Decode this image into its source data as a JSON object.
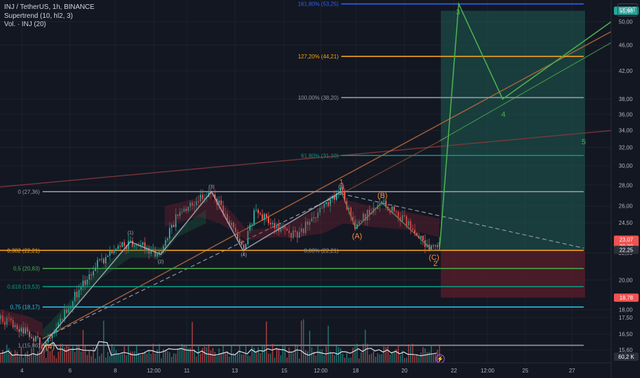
{
  "header": {
    "symbol_line": "INJ / TetherUS, 1h, BINANCE",
    "indicator_1": "Supertrend (10, hl2, 3)",
    "indicator_2": "Vol. · INJ (20)",
    "currency_button": "USDT"
  },
  "colors": {
    "background": "#131722",
    "grid": "#1e222d",
    "axis_text": "#b2b5be",
    "fib_0": "#9598a1",
    "fib_382": "#f7a21b",
    "fib_05": "#4caf50",
    "fib_618": "#089981",
    "fib_075": "#2ec4e6",
    "fib_1": "#9598a1",
    "ext_618": "#089981",
    "ext_100": "#9598a1",
    "ext_127": "#f7a21b",
    "ext_161": "#2962ff",
    "up_candle": "#26a69a",
    "down_candle": "#ef5350",
    "wave_white": "#b2b5be",
    "wave_orange": "#ff8a3d",
    "wave_green": "#4caf50",
    "long_target": "#1e5c52",
    "long_stop": "#5a1e2a"
  },
  "chart_data": {
    "type": "candlestick",
    "y_axis": {
      "scale": "log",
      "range": [
        14.9,
        54.0
      ],
      "ticks": [
        "50,00",
        "46,00",
        "42,00",
        "38,00",
        "36,00",
        "34,00",
        "32,00",
        "30,00",
        "28,00",
        "26,00",
        "24,50",
        "22,00",
        "20,00",
        "18,00",
        "17,50",
        "16,50",
        "15,60"
      ]
    },
    "x_axis": {
      "ticks": [
        "4",
        "6",
        "8",
        "12:00",
        "11",
        "13",
        "15",
        "12:00",
        "18",
        "20",
        "22",
        "12:00",
        "25",
        "27"
      ]
    },
    "price_badges": [
      {
        "label": "51,98",
        "value": 51.98,
        "color": "#26a69a"
      },
      {
        "label": "23,07",
        "sub": "29:38",
        "value": 23.07,
        "color": "#ef5350"
      },
      {
        "label": "22,25",
        "value": 22.25,
        "color": "#2a2e39"
      },
      {
        "label": "18,78",
        "value": 18.78,
        "color": "#ef5350"
      },
      {
        "label": "60,2 K",
        "value": 60.2,
        "color": "#2a2e39"
      }
    ],
    "fib_retracement": [
      {
        "label": "0 (27,36)",
        "value": 27.36,
        "color_key": "fib_0"
      },
      {
        "label": "0,382 (22,21)",
        "value": 22.21,
        "color_key": "fib_382"
      },
      {
        "label": "0,5 (20,83)",
        "value": 20.83,
        "color_key": "fib_05"
      },
      {
        "label": "0,618 (19,53)",
        "value": 19.53,
        "color_key": "fib_618"
      },
      {
        "label": "0,75 (18,17)",
        "value": 18.17,
        "color_key": "fib_075"
      },
      {
        "label": "1 (15,86)",
        "value": 15.86,
        "color_key": "fib_1"
      }
    ],
    "fib_extension": [
      {
        "label": "0,00% (22,21)",
        "value": 22.21,
        "color_key": "fib_0"
      },
      {
        "label": "61,80% (31,10)",
        "value": 31.1,
        "color_key": "ext_618"
      },
      {
        "label": "100,00% (38,20)",
        "value": 38.2,
        "color_key": "ext_100"
      },
      {
        "label": "127,20% (44,21)",
        "value": 44.21,
        "color_key": "ext_127"
      },
      {
        "label": "161,80% (53,25)",
        "value": 53.25,
        "color_key": "ext_161"
      }
    ],
    "wave_labels": [
      {
        "text": "(1)",
        "color_key": "wave_white"
      },
      {
        "text": "(2)",
        "color_key": "wave_white"
      },
      {
        "text": "(3)",
        "color_key": "wave_white"
      },
      {
        "text": "(4)",
        "color_key": "wave_white"
      },
      {
        "text": "(5)",
        "color_key": "wave_white"
      },
      {
        "text": "1",
        "color_key": "wave_orange"
      },
      {
        "text": "(A)",
        "color_key": "wave_orange"
      },
      {
        "text": "(B)",
        "color_key": "wave_orange"
      },
      {
        "text": "(C)",
        "color_key": "wave_orange"
      },
      {
        "text": "2",
        "color_key": "wave_orange"
      },
      {
        "text": "(4)",
        "color_key": "wave_orange"
      },
      {
        "text": "3",
        "color_key": "wave_green"
      },
      {
        "text": "4",
        "color_key": "wave_green"
      },
      {
        "text": "5",
        "color_key": "wave_green"
      }
    ],
    "primary_wave_values": [
      15.86,
      22.9,
      21.9,
      27.36,
      22.2,
      27.36
    ],
    "corrective_wave_values": [
      27.36,
      24.0,
      26.3,
      22.21
    ],
    "projection_wave_values": [
      22.21,
      53.25,
      38.0,
      50.0
    ],
    "long_position": {
      "entry": 22.25,
      "target": 51.98,
      "stop": 18.78
    }
  }
}
